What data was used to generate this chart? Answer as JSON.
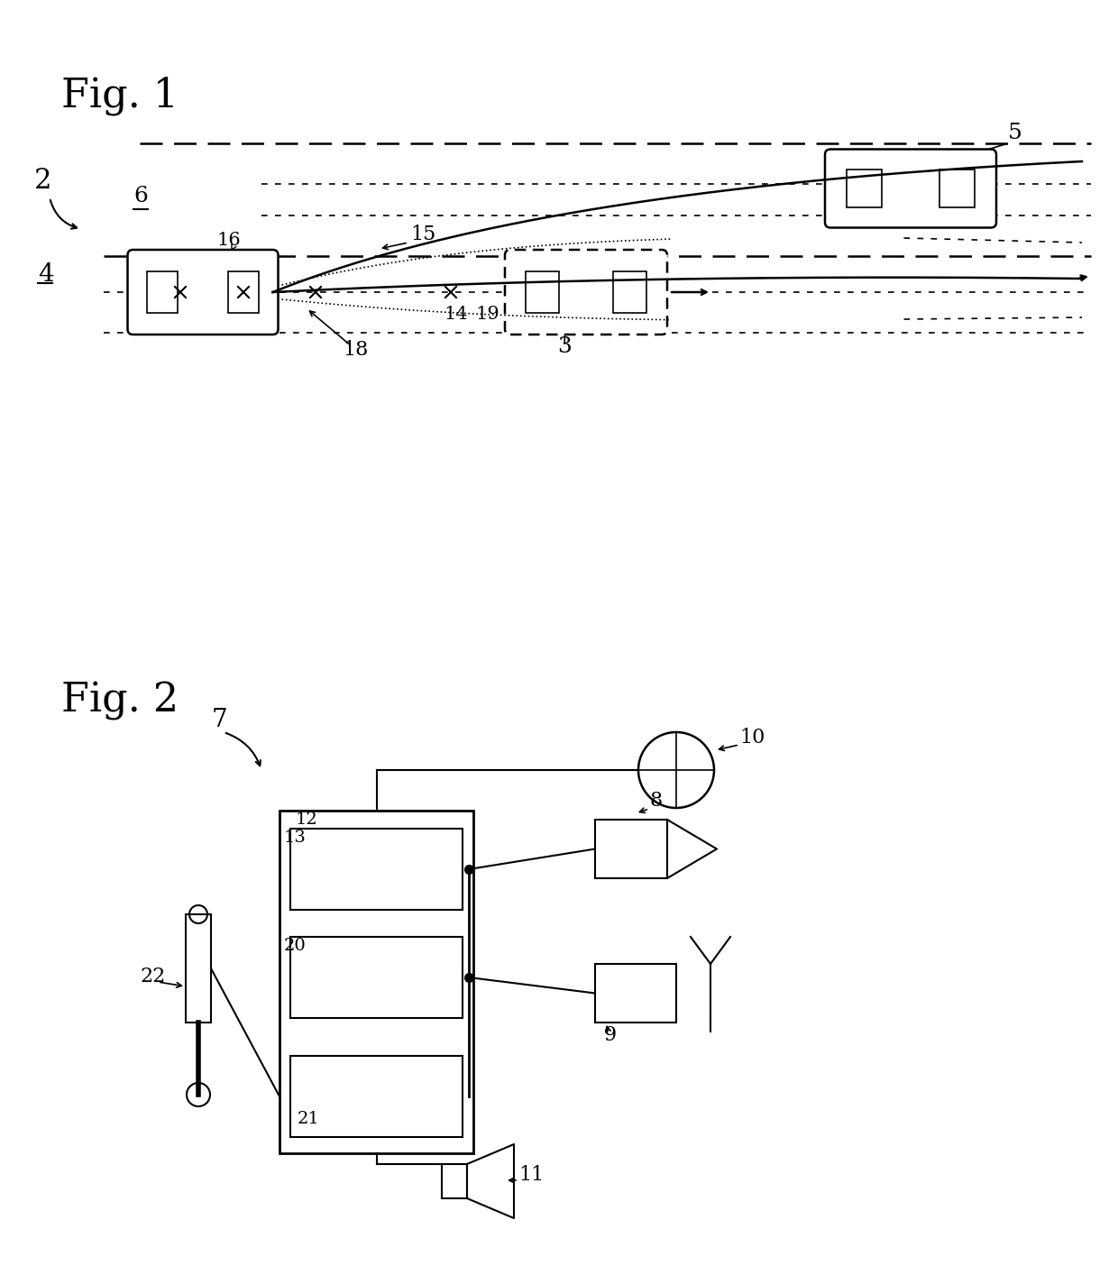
{
  "bg_color": "#ffffff",
  "lc": "#000000",
  "fig1_label": "Fig. 1",
  "fig2_label": "Fig. 2",
  "road_line_color": "#555555",
  "car_fill": "#ffffff"
}
